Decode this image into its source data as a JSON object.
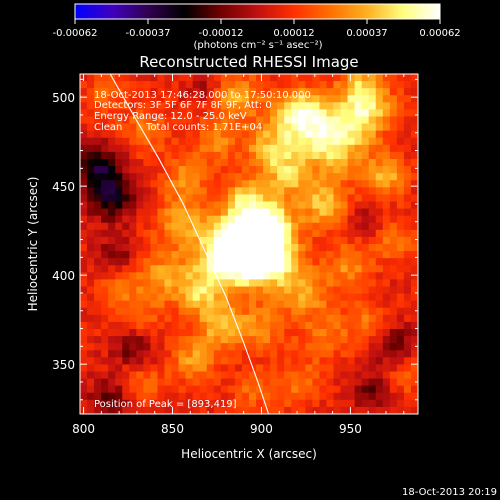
{
  "colorbar": {
    "tick_labels": [
      "-0.00062",
      "-0.00037",
      "-0.00012",
      "0.00012",
      "0.00037",
      "0.00062"
    ],
    "unit_label": "(photons cm⁻² s⁻¹ asec⁻²)",
    "range": [
      -0.00062,
      0.00062
    ],
    "colors": [
      "#0000ff",
      "#4000c0",
      "#300050",
      "#000000",
      "#700000",
      "#c01010",
      "#ff3000",
      "#ff7000",
      "#ffb020",
      "#ffff80",
      "#ffffff"
    ]
  },
  "annotations": {
    "line1": "18-Oct-2013 17:46:28.000 to 17:50:10.000",
    "line2": "Detectors: 3F 5F 6F 7F 8F 9F, Att: 0",
    "line3": "Energy Range: 12.0 - 25.0 keV",
    "line4_method": "Clean",
    "line4_counts": "Total counts: 1.71E+04",
    "peak": "Position of Peak = [893,419]"
  },
  "footer": {
    "timestamp": "18-Oct-2013 20:19"
  },
  "chart_data": {
    "type": "heatmap",
    "title": "Reconstructed RHESSI Image",
    "xlabel": "Heliocentric X (arcsec)",
    "ylabel": "Heliocentric Y (arcsec)",
    "xlim": [
      798,
      988
    ],
    "ylim": [
      322,
      513
    ],
    "x_ticks": [
      800,
      850,
      900,
      950
    ],
    "y_ticks": [
      350,
      400,
      450,
      500
    ],
    "peak_position": [
      893,
      419
    ],
    "limb_curve": {
      "x": [
        815,
        828,
        842,
        856,
        868,
        880,
        890,
        898,
        904
      ],
      "y": [
        513,
        490,
        466,
        440,
        414,
        388,
        362,
        340,
        322
      ]
    },
    "sources": [
      {
        "x": 893,
        "y": 419,
        "r": 13,
        "value": 0.00062
      },
      {
        "x": 880,
        "y": 410,
        "r": 12,
        "value": 0.00045
      },
      {
        "x": 905,
        "y": 408,
        "r": 11,
        "value": 0.0004
      },
      {
        "x": 903,
        "y": 430,
        "r": 10,
        "value": 0.00038
      },
      {
        "x": 940,
        "y": 478,
        "r": 14,
        "value": 0.00048
      },
      {
        "x": 920,
        "y": 490,
        "r": 10,
        "value": 0.00038
      },
      {
        "x": 960,
        "y": 495,
        "r": 10,
        "value": 0.00035
      },
      {
        "x": 905,
        "y": 470,
        "r": 10,
        "value": 0.00032
      },
      {
        "x": 885,
        "y": 500,
        "r": 10,
        "value": 0.00028
      },
      {
        "x": 935,
        "y": 440,
        "r": 10,
        "value": 0.0003
      },
      {
        "x": 970,
        "y": 455,
        "r": 8,
        "value": 0.00028
      },
      {
        "x": 925,
        "y": 390,
        "r": 10,
        "value": 0.00026
      },
      {
        "x": 950,
        "y": 405,
        "r": 9,
        "value": 0.00022
      },
      {
        "x": 975,
        "y": 420,
        "r": 8,
        "value": 0.0002
      },
      {
        "x": 855,
        "y": 430,
        "r": 10,
        "value": 0.00026
      },
      {
        "x": 845,
        "y": 400,
        "r": 10,
        "value": 0.00024
      },
      {
        "x": 858,
        "y": 455,
        "r": 9,
        "value": 0.00022
      },
      {
        "x": 865,
        "y": 390,
        "r": 9,
        "value": 0.0003
      },
      {
        "x": 878,
        "y": 372,
        "r": 9,
        "value": 0.00032
      },
      {
        "x": 862,
        "y": 352,
        "r": 9,
        "value": 0.00025
      },
      {
        "x": 900,
        "y": 370,
        "r": 9,
        "value": 0.00022
      },
      {
        "x": 935,
        "y": 365,
        "r": 9,
        "value": 0.00018
      },
      {
        "x": 960,
        "y": 372,
        "r": 9,
        "value": 0.00018
      },
      {
        "x": 980,
        "y": 345,
        "r": 8,
        "value": 0.00016
      },
      {
        "x": 920,
        "y": 340,
        "r": 10,
        "value": 0.00015
      },
      {
        "x": 830,
        "y": 375,
        "r": 10,
        "value": 0.00018
      },
      {
        "x": 820,
        "y": 395,
        "r": 9,
        "value": 0.00016
      },
      {
        "x": 835,
        "y": 480,
        "r": 9,
        "value": 0.00018
      },
      {
        "x": 812,
        "y": 500,
        "r": 8,
        "value": 0.00015
      },
      {
        "x": 875,
        "y": 475,
        "r": 8,
        "value": 0.0002
      },
      {
        "x": 832,
        "y": 340,
        "r": 9,
        "value": 0.00016
      },
      {
        "x": 895,
        "y": 335,
        "r": 8,
        "value": 0.00015
      },
      {
        "x": 955,
        "y": 510,
        "r": 8,
        "value": 0.0002
      },
      {
        "x": 890,
        "y": 445,
        "r": 7,
        "value": 0.00024
      },
      {
        "x": 915,
        "y": 455,
        "r": 8,
        "value": 0.00024
      },
      {
        "x": 815,
        "y": 445,
        "r": 10,
        "value": -0.00035
      },
      {
        "x": 808,
        "y": 462,
        "r": 9,
        "value": -0.0003
      },
      {
        "x": 818,
        "y": 410,
        "r": 8,
        "value": -0.0002
      },
      {
        "x": 828,
        "y": 360,
        "r": 9,
        "value": -0.00025
      },
      {
        "x": 815,
        "y": 330,
        "r": 9,
        "value": -0.00022
      },
      {
        "x": 975,
        "y": 360,
        "r": 9,
        "value": -0.00025
      },
      {
        "x": 962,
        "y": 335,
        "r": 8,
        "value": -0.0002
      },
      {
        "x": 960,
        "y": 430,
        "r": 7,
        "value": -0.00015
      },
      {
        "x": 870,
        "y": 505,
        "r": 7,
        "value": -0.00015
      }
    ]
  }
}
